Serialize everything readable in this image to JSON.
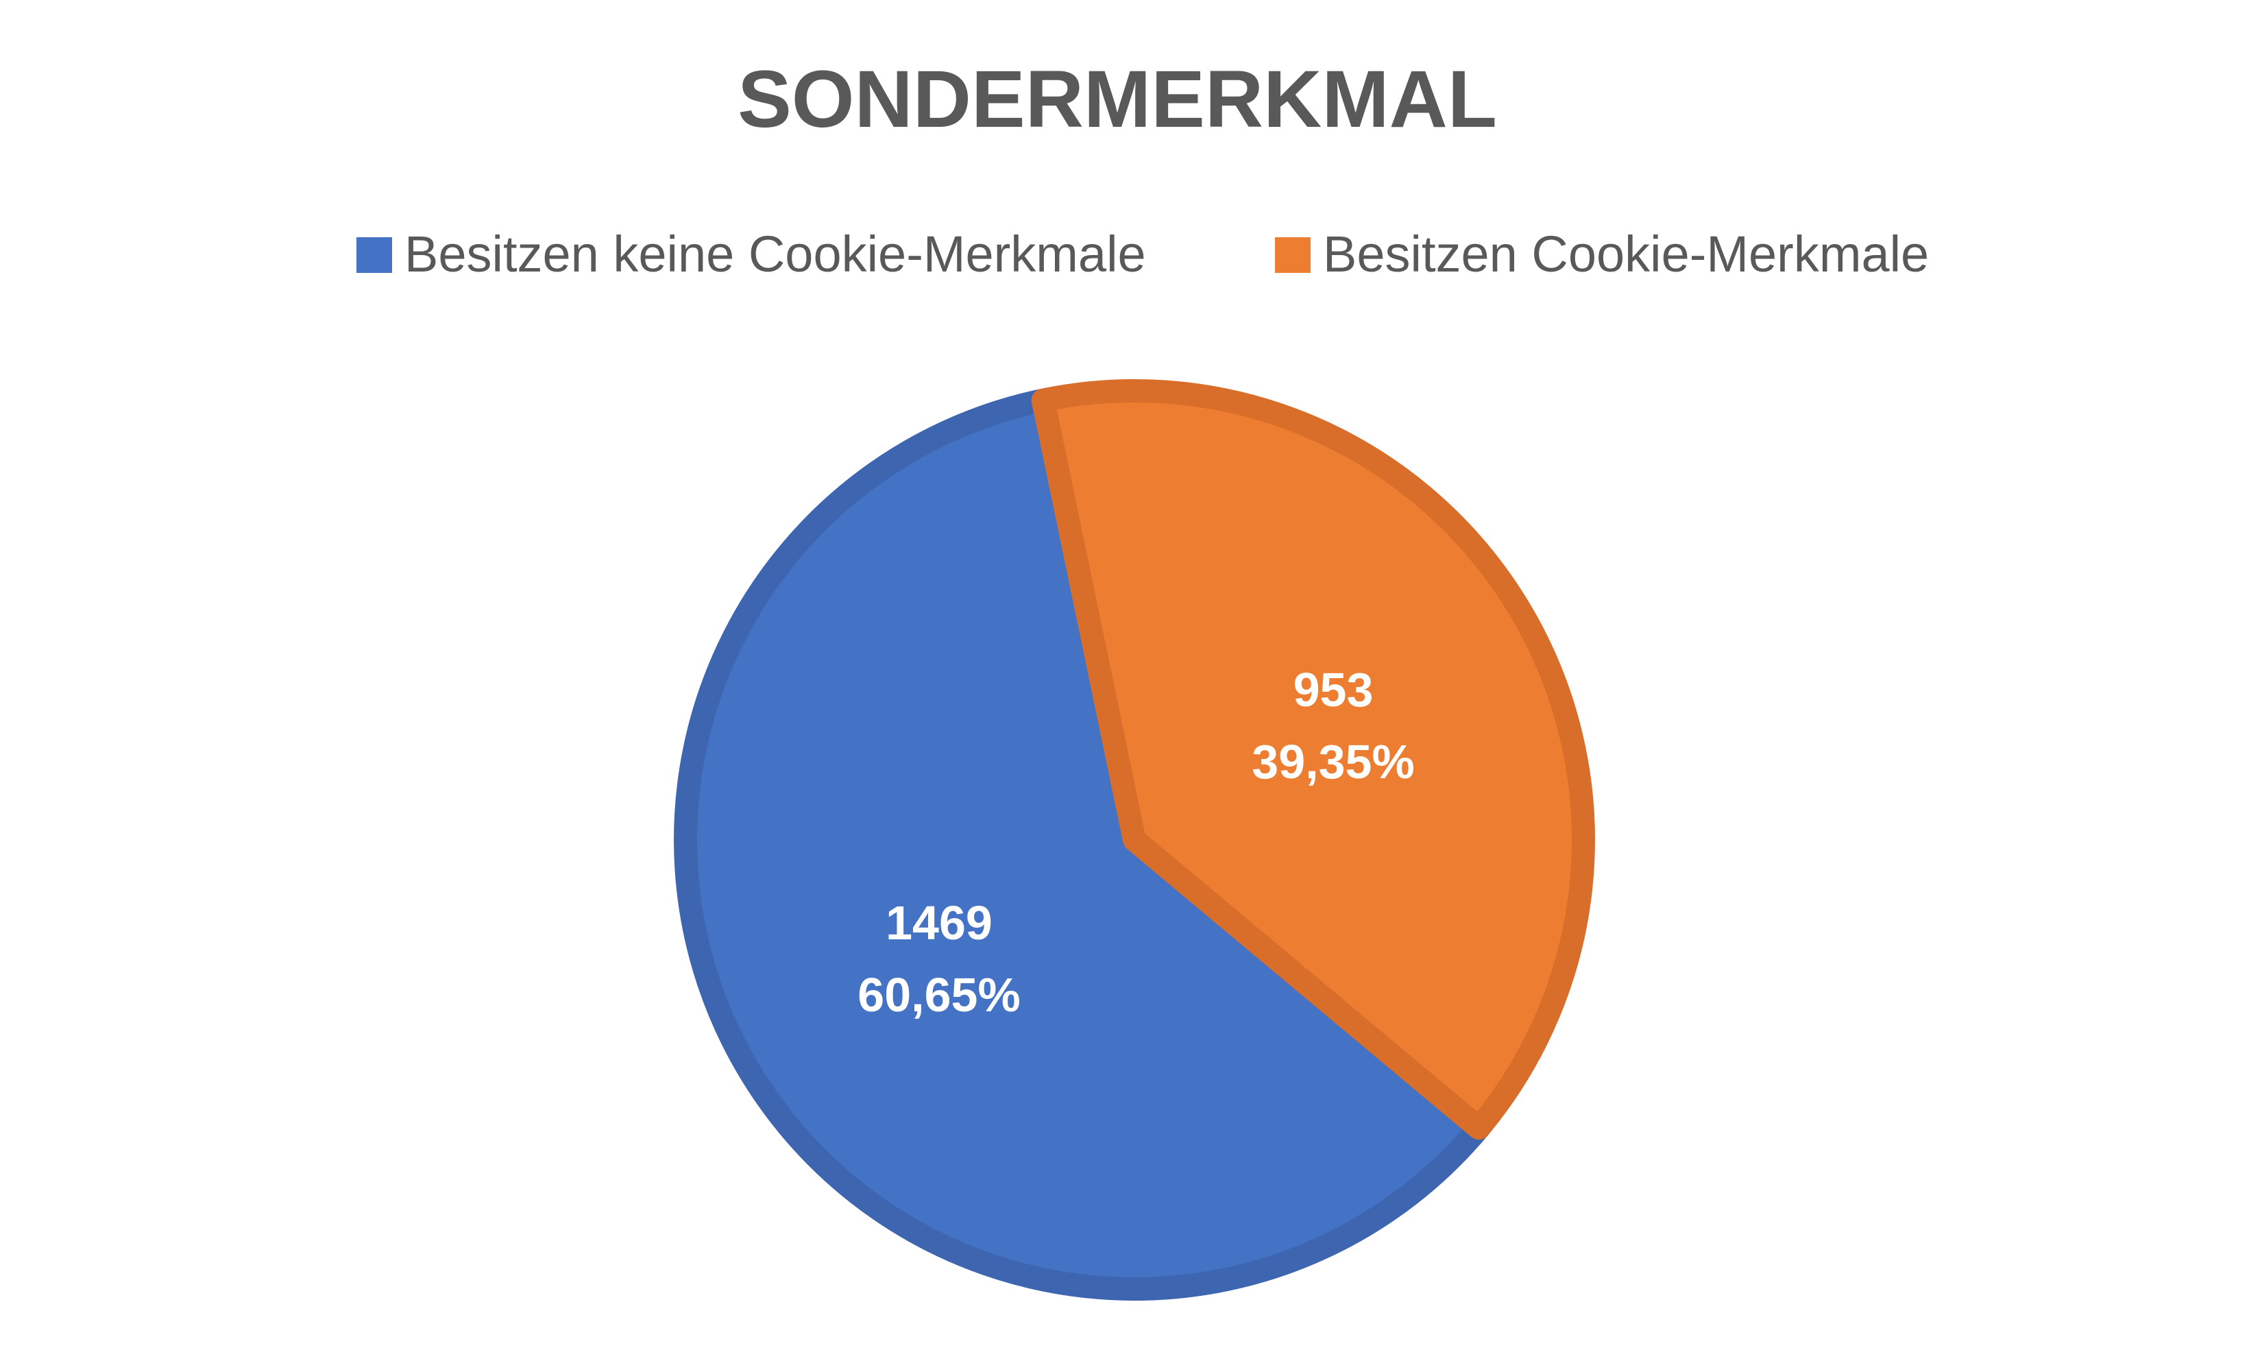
{
  "chart_data": {
    "type": "pie",
    "title": "SONDERMERKMAL",
    "legend_position": "top",
    "series": [
      {
        "name": "Besitzen keine Cookie-Merkmale",
        "value": 1469,
        "percent_label": "60,65%",
        "color": "#4472C4",
        "edge_color": "#3E65B0"
      },
      {
        "name": "Besitzen Cookie-Merkmale",
        "value": 953,
        "percent_label": "39,35%",
        "color": "#ED7D31",
        "edge_color": "#D96E2A"
      }
    ]
  }
}
